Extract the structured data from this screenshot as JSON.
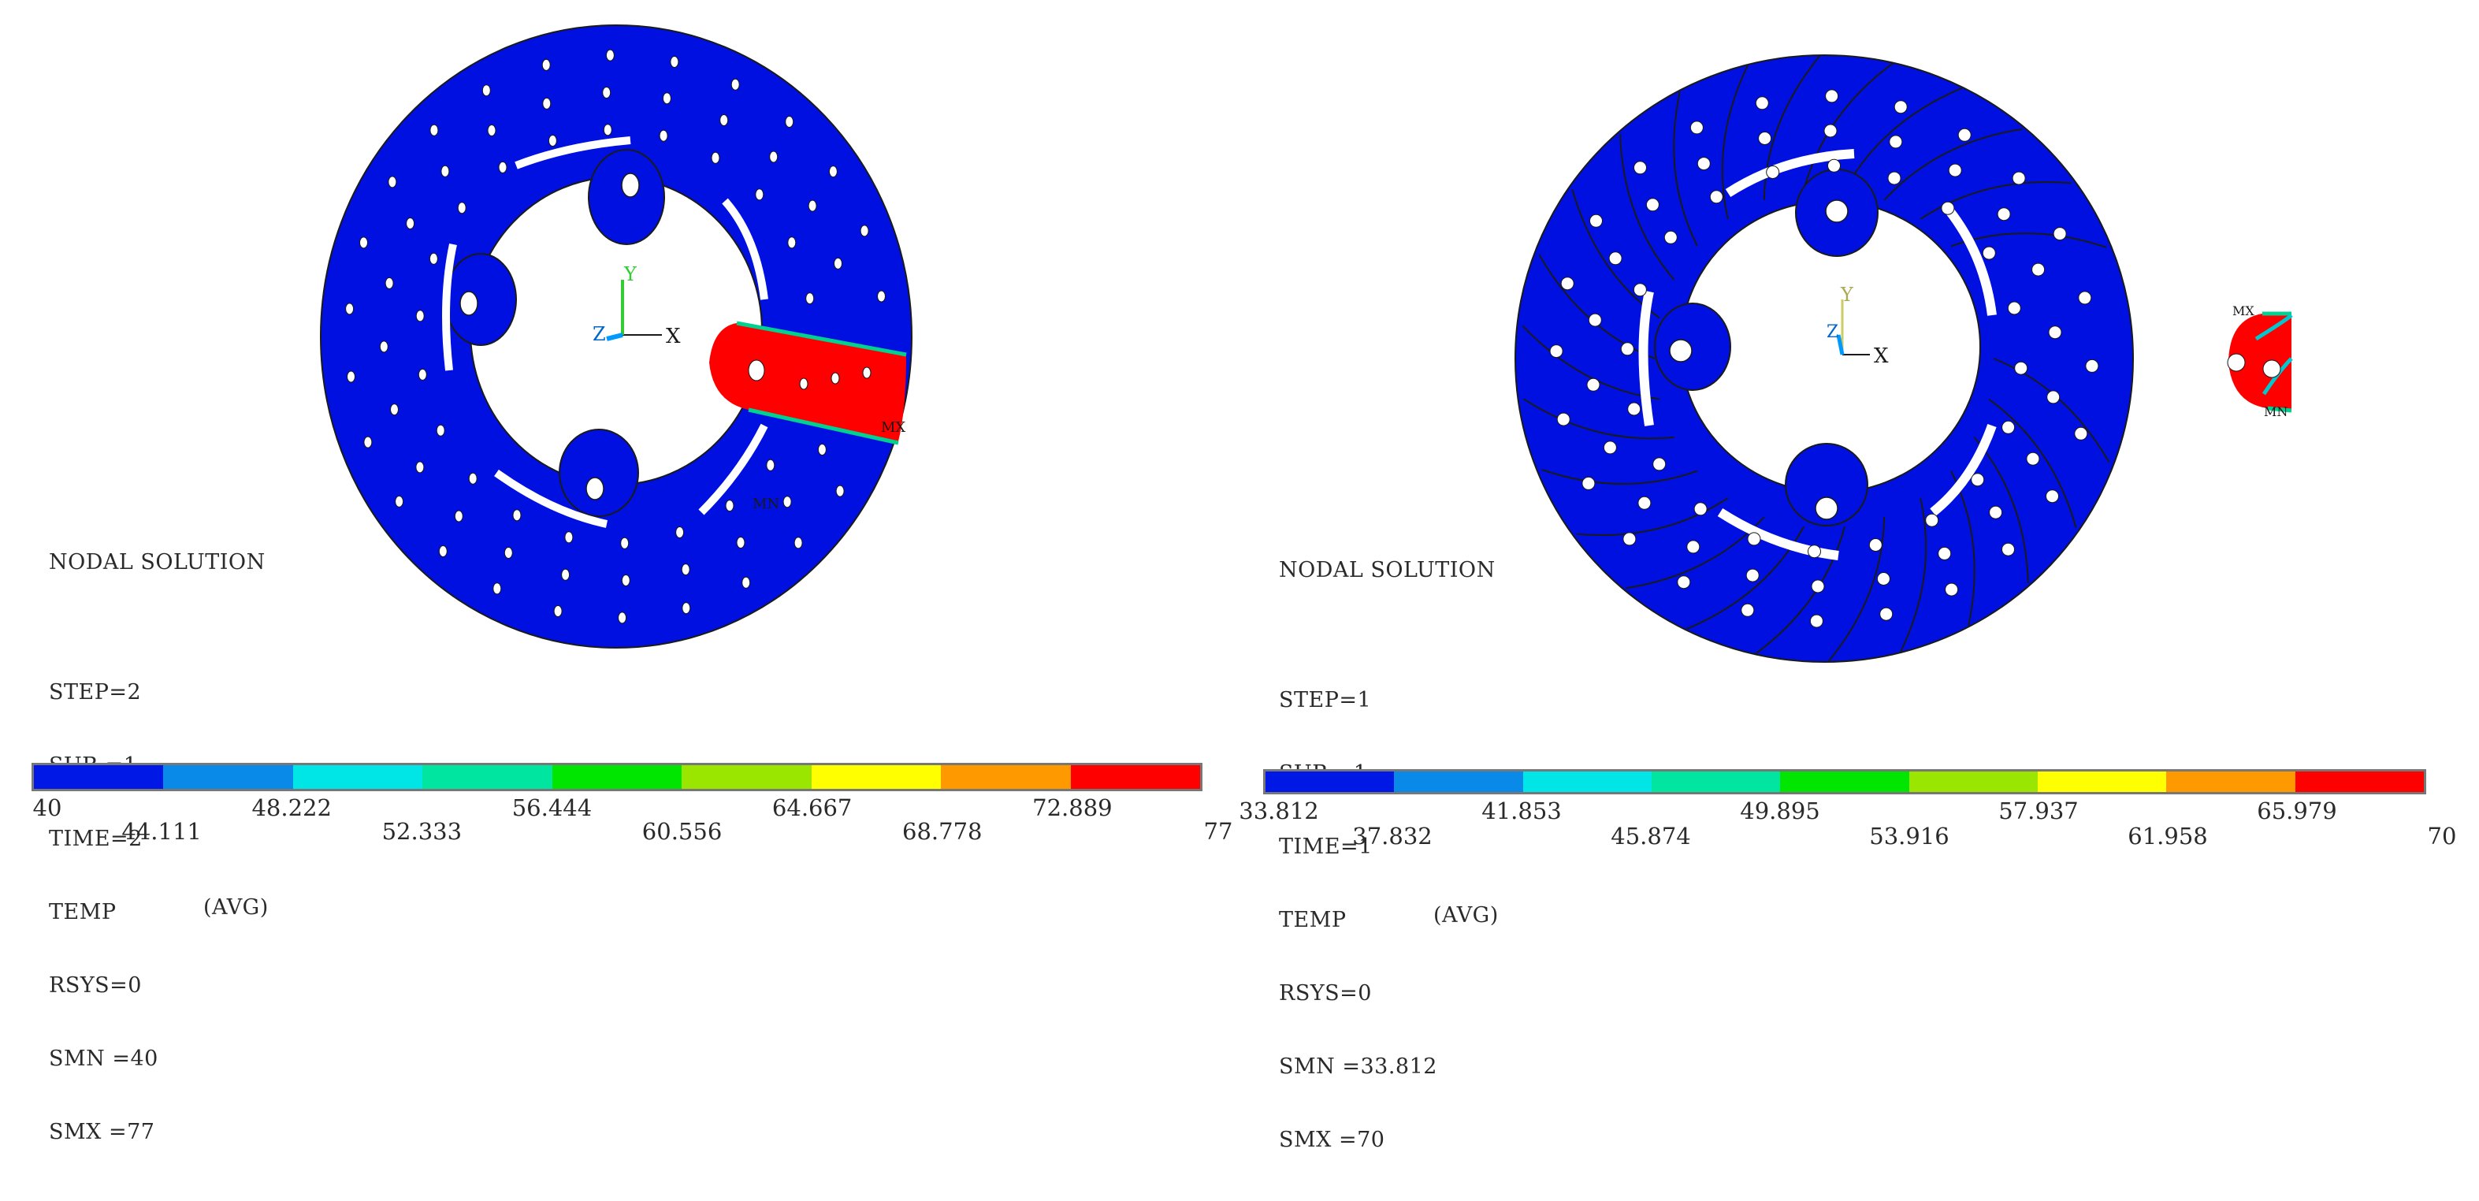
{
  "panels": [
    {
      "id": "left",
      "info": {
        "title": "NODAL SOLUTION",
        "step": "STEP=2",
        "sub": "SUB =1",
        "time": "TIME=2",
        "temp": "TEMP",
        "avg": "(AVG)",
        "rsys": "RSYS=0",
        "smn": "SMN =40",
        "smx": "SMX =77"
      },
      "axes": {
        "x": "X",
        "y": "Y",
        "z": "Z"
      },
      "markers": {
        "mn": "MN",
        "mx": "MX"
      },
      "legend": {
        "colors": [
          "#0018e6",
          "#0a8ae8",
          "#00e6e6",
          "#00e6a0",
          "#00e600",
          "#9be600",
          "#ffff00",
          "#ff9900",
          "#ff0000"
        ],
        "upper_ticks": [
          "40",
          "48.222",
          "56.444",
          "64.667",
          "72.889"
        ],
        "lower_ticks": [
          "44.111",
          "52.333",
          "60.556",
          "68.778",
          "77"
        ]
      }
    },
    {
      "id": "right",
      "info": {
        "title": "NODAL SOLUTION",
        "step": "STEP=1",
        "sub": "SUB =1",
        "time": "TIME=1",
        "temp": "TEMP",
        "avg": "(AVG)",
        "rsys": "RSYS=0",
        "smn": "SMN =33.812",
        "smx": "SMX =70"
      },
      "axes": {
        "x": "X",
        "y": "Y",
        "z": "Z"
      },
      "markers": {
        "mn": "MN",
        "mx": "MX"
      },
      "legend": {
        "colors": [
          "#0018e6",
          "#0a8ae8",
          "#00e6e6",
          "#00e6a0",
          "#00e600",
          "#9be600",
          "#ffff00",
          "#ff9900",
          "#ff0000"
        ],
        "upper_ticks": [
          "33.812",
          "41.853",
          "49.895",
          "57.937",
          "65.979"
        ],
        "lower_ticks": [
          "37.832",
          "45.874",
          "53.916",
          "61.958",
          "70"
        ]
      }
    }
  ]
}
